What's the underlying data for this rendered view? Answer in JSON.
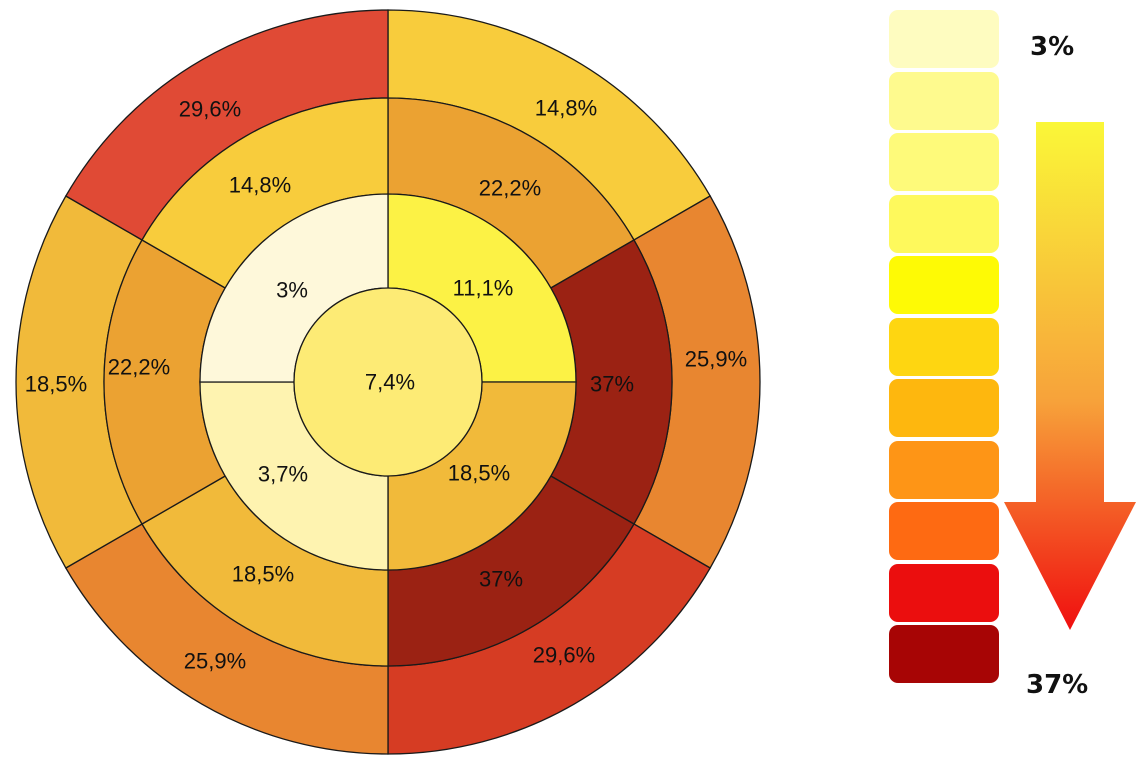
{
  "diagram": {
    "rings": [
      {
        "level": "center",
        "segments": [
          {
            "label": "7,4%",
            "color": "#FDEB75"
          }
        ]
      },
      {
        "level": "inner",
        "segments": [
          {
            "quadrant": "top-right",
            "label": "11,1%",
            "color": "#FCF245"
          },
          {
            "quadrant": "bottom-right",
            "label": "18,5%",
            "color": "#F1BA3A"
          },
          {
            "quadrant": "bottom-left",
            "label": "3,7%",
            "color": "#FEF3B0"
          },
          {
            "quadrant": "top-left",
            "label": "3%",
            "color": "#FEF8DA"
          }
        ]
      },
      {
        "level": "middle",
        "segments": [
          {
            "label": "22,2%",
            "color": "#EBA232"
          },
          {
            "label": "37%",
            "color": "#9B2213"
          },
          {
            "label": "37%",
            "color": "#9B2213"
          },
          {
            "label": "18,5%",
            "color": "#F1BA3A"
          },
          {
            "label": "22,2%",
            "color": "#EBA232"
          },
          {
            "label": "14,8%",
            "color": "#F8CC3C"
          }
        ]
      },
      {
        "level": "outer",
        "segments": [
          {
            "label": "14,8%",
            "color": "#F8CC3C"
          },
          {
            "label": "25,9%",
            "color": "#E88630"
          },
          {
            "label": "29,6%",
            "color": "#D63C23"
          },
          {
            "label": "25,9%",
            "color": "#E88630"
          },
          {
            "label": "18,5%",
            "color": "#F1BA3A"
          },
          {
            "label": "29,6%",
            "color": "#E04A35"
          }
        ]
      }
    ]
  },
  "legend": {
    "min_label": "3%",
    "max_label": "37%",
    "scale_colors": [
      "#FEFCC0",
      "#FEFA8E",
      "#FEFA7A",
      "#FEF95C",
      "#FEFA05",
      "#FED611",
      "#FEB70E",
      "#FE9516",
      "#FE6A12",
      "#EB0E0E",
      "#A70505"
    ],
    "arrow_gradient": [
      "#FAF738",
      "#F7A23A",
      "#F00F0F"
    ]
  }
}
